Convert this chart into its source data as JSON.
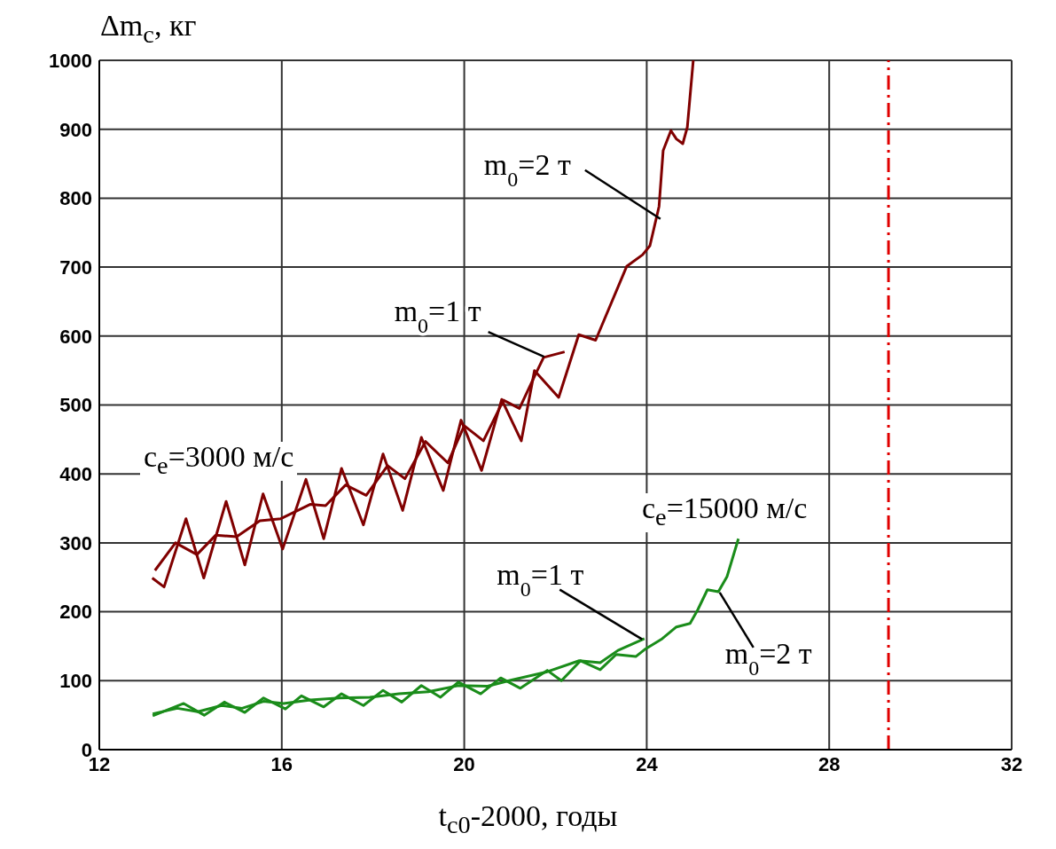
{
  "chart_data": {
    "type": "line",
    "xlabel": "t$_{c0}$-2000, годы",
    "ylabel": "Δm$_{c}$, кг",
    "xlim": [
      12,
      32
    ],
    "xticks": [
      12,
      16,
      20,
      24,
      28,
      32
    ],
    "ylim": [
      0,
      1000
    ],
    "yticks": [
      0,
      100,
      200,
      300,
      400,
      500,
      600,
      700,
      800,
      900,
      1000
    ],
    "grid": true,
    "legend": false,
    "marker": "none",
    "line_style": "solid",
    "series": [
      {
        "color": "#800000",
        "x": [
          13.16,
          13.42,
          13.9,
          14.29,
          14.78,
          15.19,
          15.59,
          16.02,
          16.53,
          16.92,
          17.31,
          17.79,
          18.22,
          18.65,
          19.06,
          19.54,
          19.93,
          20.38,
          20.82,
          21.25,
          21.54,
          22.07,
          22.51,
          22.88,
          23.56,
          23.91,
          24.07,
          24.27,
          24.36,
          24.53,
          24.65,
          24.79,
          24.89,
          25.02
        ],
        "values": [
          249,
          236,
          335,
          249,
          360,
          268,
          371,
          291,
          392,
          306,
          408,
          326,
          429,
          347,
          453,
          376,
          478,
          405,
          508,
          448,
          550,
          511,
          602,
          594,
          701,
          718,
          731,
          788,
          869,
          898,
          886,
          879,
          903,
          1000
        ]
      },
      {
        "color": "#800000",
        "x": [
          13.22,
          13.67,
          14.14,
          14.55,
          15.01,
          15.52,
          15.98,
          16.63,
          16.96,
          17.4,
          17.85,
          18.32,
          18.7,
          19.15,
          19.64,
          20.0,
          20.42,
          20.86,
          21.21,
          21.58,
          21.74,
          22.2
        ],
        "values": [
          260,
          300,
          283,
          311,
          309,
          332,
          335,
          356,
          354,
          384,
          369,
          412,
          393,
          447,
          416,
          470,
          448,
          507,
          495,
          547,
          569,
          577
        ]
      },
      {
        "color": "#1a8c1a",
        "x": [
          13.17,
          13.71,
          14.16,
          14.68,
          15.13,
          15.6,
          16.04,
          16.63,
          17.27,
          17.93,
          18.57,
          19.21,
          19.87,
          20.51,
          21.04,
          21.82,
          22.52,
          22.98,
          23.37,
          23.95
        ],
        "values": [
          52,
          60,
          55,
          64,
          60,
          70,
          67,
          72,
          75,
          76,
          81,
          84,
          93,
          92,
          101,
          113,
          129,
          126,
          144,
          161
        ]
      },
      {
        "color": "#1a8c1a",
        "x": [
          13.17,
          13.85,
          14.3,
          14.74,
          15.19,
          15.6,
          16.08,
          16.43,
          16.92,
          17.31,
          17.79,
          18.22,
          18.63,
          19.06,
          19.48,
          19.87,
          20.36,
          20.8,
          21.23,
          21.82,
          22.13,
          22.55,
          22.98,
          23.33,
          23.76,
          23.95,
          24.34,
          24.65,
          24.95,
          25.12,
          25.33,
          25.57,
          25.76,
          26.01
        ],
        "values": [
          49,
          67,
          50,
          69,
          54,
          75,
          59,
          78,
          62,
          81,
          64,
          86,
          69,
          93,
          76,
          98,
          81,
          104,
          89,
          115,
          100,
          129,
          116,
          138,
          135,
          145,
          161,
          178,
          183,
          203,
          232,
          229,
          251,
          306
        ]
      }
    ],
    "ref_lines": [
      {
        "axis": "x",
        "value": 29.3,
        "color": "#e00000",
        "line_style": "dashed"
      }
    ],
    "annotations": [
      "c$_{e}$=3000 м/с",
      {
        "text": "m$_{0}$=1 т",
        "x": 21.75,
        "y": 570
      },
      {
        "text": "m$_{0}$=2 т",
        "x": 24.3,
        "y": 770
      },
      "c$_{e}$=15000 м/с",
      {
        "text": "m$_{0}$=1 т",
        "x": 23.9,
        "y": 160
      },
      {
        "text": "m$_{0}$=2 т",
        "x": 25.6,
        "y": 228
      }
    ]
  }
}
